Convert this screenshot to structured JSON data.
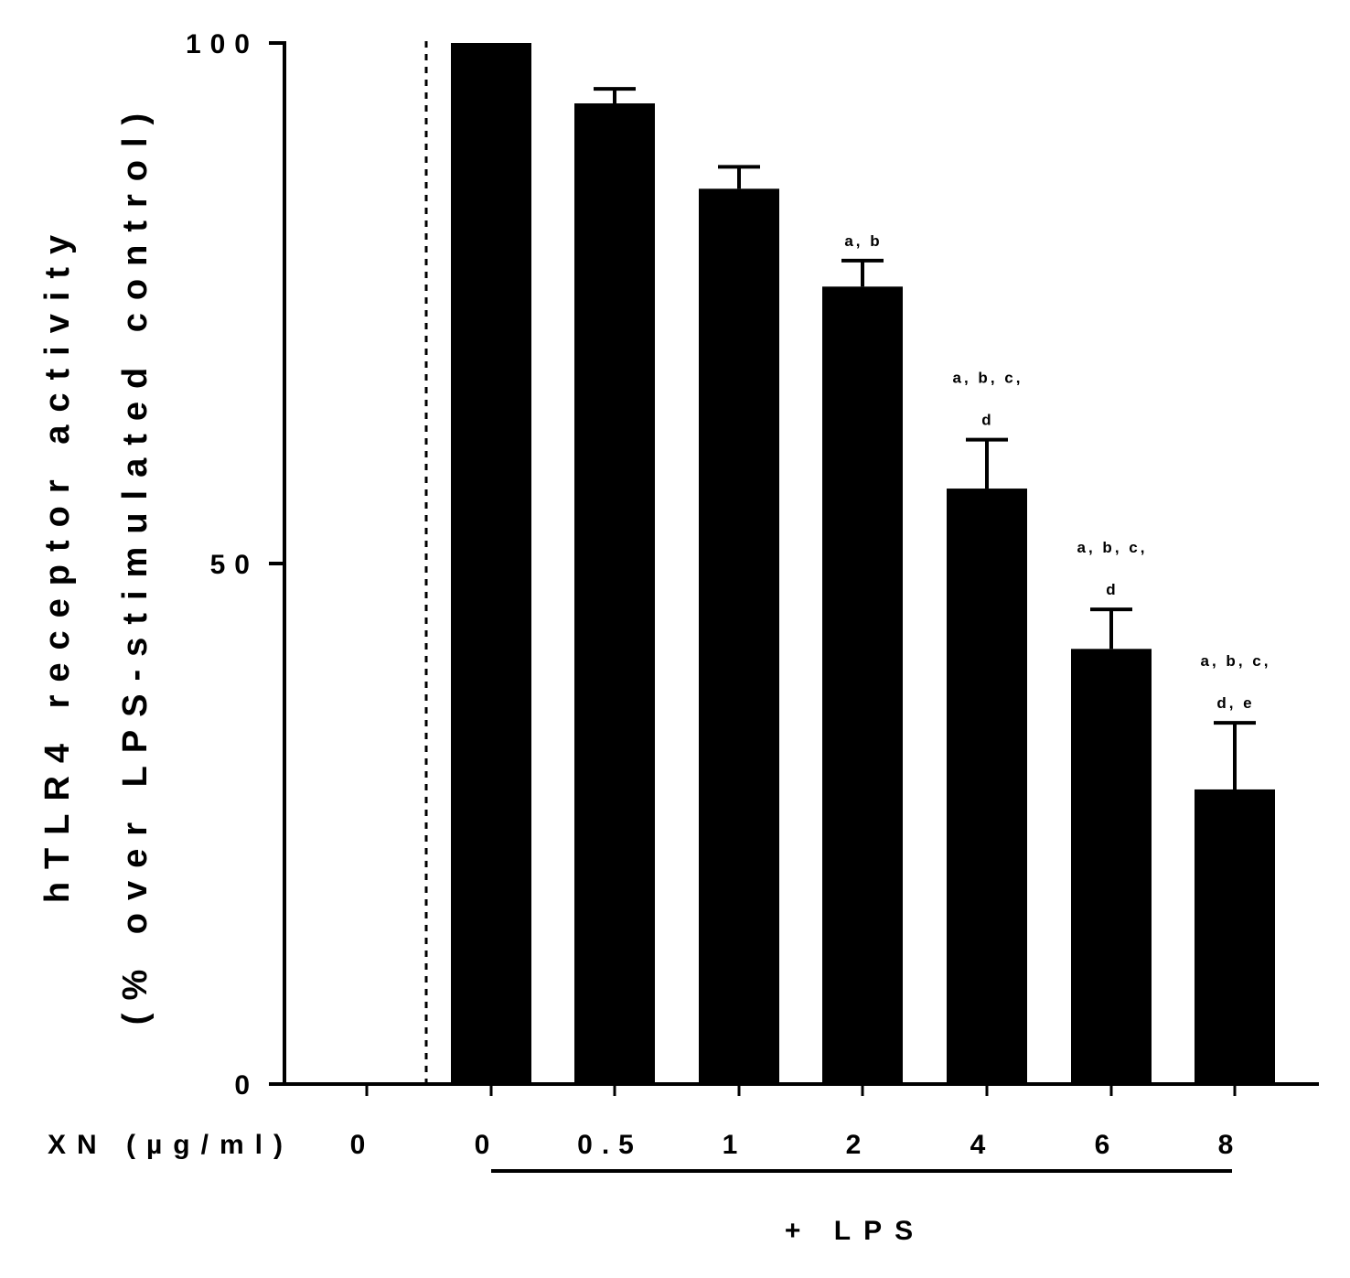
{
  "chart_data": {
    "type": "bar",
    "ylabel_line1": "hTLR4 receptor activity",
    "ylabel_line2": "(% over LPS-stimulated control)",
    "x_prefix": "XN (µg/ml)",
    "group_label": "+ LPS",
    "ylim": [
      0,
      100
    ],
    "yticks": [
      0,
      50,
      100
    ],
    "ytick_labels": [
      "0",
      "50",
      "100"
    ],
    "grid": false,
    "categories": [
      "0",
      "0",
      "0.5",
      "1",
      "2",
      "4",
      "6",
      "8"
    ],
    "values": [
      0,
      100,
      94.2,
      86.0,
      76.6,
      57.2,
      41.8,
      28.3
    ],
    "errors": [
      0,
      0,
      1.4,
      2.1,
      2.5,
      4.7,
      3.8,
      6.4
    ],
    "annotations": [
      [],
      [],
      [],
      [],
      [
        "a, b"
      ],
      [
        "a, b, c,",
        "d"
      ],
      [
        "a, b, c,",
        "d"
      ],
      [
        "a, b, c,",
        "d, e"
      ]
    ],
    "bar_color": "#000000"
  }
}
